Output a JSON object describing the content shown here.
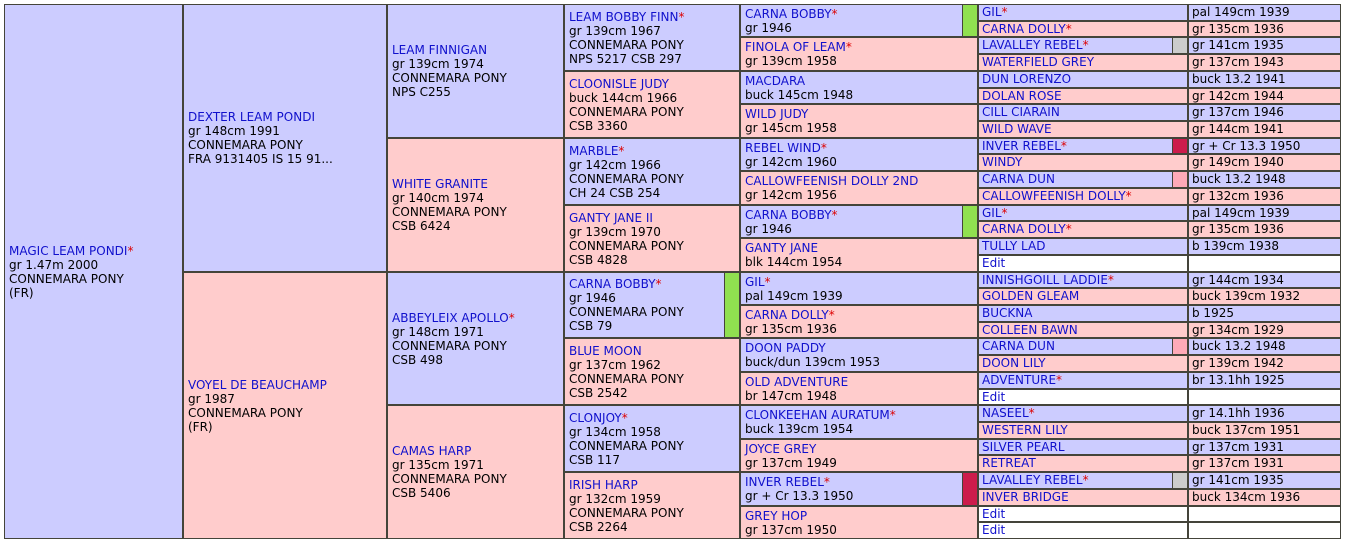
{
  "horses": {
    "g1": {
      "name": "MAGIC LEAM PONDI",
      "star": true,
      "lines": [
        "gr 1.47m 2000",
        "CONNEMARA PONY",
        "(FR)"
      ]
    },
    "g2a": {
      "name": "DEXTER LEAM PONDI",
      "star": false,
      "lines": [
        "gr 148cm 1991",
        "CONNEMARA PONY",
        "FRA 9131405 IS 15 91..."
      ]
    },
    "g2b": {
      "name": "VOYEL DE BEAUCHAMP",
      "star": false,
      "lines": [
        "gr 1987",
        "CONNEMARA PONY",
        "(FR)"
      ]
    },
    "g3a": {
      "name": "LEAM FINNIGAN",
      "star": false,
      "lines": [
        "gr 139cm 1974",
        "CONNEMARA PONY",
        "NPS C255"
      ]
    },
    "g3b": {
      "name": "WHITE GRANITE",
      "star": false,
      "lines": [
        "gr 140cm 1974",
        "CONNEMARA PONY",
        "CSB 6424"
      ]
    },
    "g3c": {
      "name": "ABBEYLEIX APOLLO",
      "star": true,
      "lines": [
        "gr 148cm 1971",
        "CONNEMARA PONY",
        "CSB 498"
      ]
    },
    "g3d": {
      "name": "CAMAS HARP",
      "star": false,
      "lines": [
        "gr 135cm 1971",
        "CONNEMARA PONY",
        "CSB 5406"
      ]
    },
    "g4a": {
      "name": "LEAM BOBBY FINN",
      "star": true,
      "lines": [
        "gr 139cm 1967",
        "CONNEMARA PONY",
        "NPS 5217 CSB 297"
      ]
    },
    "g4b": {
      "name": "CLOONISLE JUDY",
      "star": false,
      "lines": [
        "buck 144cm 1966",
        "CONNEMARA PONY",
        "CSB 3360"
      ]
    },
    "g4c": {
      "name": "MARBLE",
      "star": true,
      "lines": [
        "gr 142cm 1966",
        "CONNEMARA PONY",
        "CH 24 CSB 254"
      ]
    },
    "g4d": {
      "name": "GANTY JANE II",
      "star": false,
      "lines": [
        "gr 139cm 1970",
        "CONNEMARA PONY",
        "CSB 4828"
      ]
    },
    "g4e": {
      "name": "CARNA BOBBY",
      "star": true,
      "lines": [
        "gr 1946",
        "CONNEMARA PONY",
        "CSB 79"
      ]
    },
    "g4f": {
      "name": "BLUE MOON",
      "star": false,
      "lines": [
        "gr 137cm 1962",
        "CONNEMARA PONY",
        "CSB 2542"
      ]
    },
    "g4g": {
      "name": "CLONJOY",
      "star": true,
      "lines": [
        "gr 134cm 1958",
        "CONNEMARA PONY",
        "CSB 117"
      ]
    },
    "g4h": {
      "name": "IRISH HARP",
      "star": false,
      "lines": [
        "gr 132cm 1959",
        "CONNEMARA PONY",
        "CSB 2264"
      ]
    },
    "g5": [
      {
        "name": "CARNA BOBBY",
        "star": true,
        "info": "gr 1946"
      },
      {
        "name": "FINOLA OF LEAM",
        "star": true,
        "info": "gr 139cm 1958"
      },
      {
        "name": "MACDARA",
        "star": false,
        "info": "buck 145cm 1948"
      },
      {
        "name": "WILD JUDY",
        "star": false,
        "info": "gr 145cm 1958"
      },
      {
        "name": "REBEL WIND",
        "star": true,
        "info": "gr 142cm 1960"
      },
      {
        "name": "CALLOWFEENISH DOLLY 2ND",
        "star": false,
        "info": "gr 142cm 1956"
      },
      {
        "name": "CARNA BOBBY",
        "star": true,
        "info": "gr 1946"
      },
      {
        "name": "GANTY JANE",
        "star": false,
        "info": "blk 144cm 1954"
      },
      {
        "name": "GIL",
        "star": true,
        "info": "pal 149cm 1939"
      },
      {
        "name": "CARNA DOLLY",
        "star": true,
        "info": "gr 135cm 1936"
      },
      {
        "name": "DOON PADDY",
        "star": false,
        "info": "buck/dun 139cm 1953"
      },
      {
        "name": "OLD ADVENTURE",
        "star": false,
        "info": "br 147cm 1948"
      },
      {
        "name": "CLONKEEHAN AURATUM",
        "star": true,
        "info": "buck 139cm 1954"
      },
      {
        "name": "JOYCE GREY",
        "star": false,
        "info": "gr 137cm 1949"
      },
      {
        "name": "INVER REBEL",
        "star": true,
        "info": "gr + Cr 13.3 1950"
      },
      {
        "name": "GREY HOP",
        "star": false,
        "info": "gr 137cm 1950"
      }
    ],
    "g6": [
      {
        "name": "GIL",
        "star": true,
        "info": "pal 149cm 1939"
      },
      {
        "name": "CARNA DOLLY",
        "star": true,
        "info": "gr 135cm 1936"
      },
      {
        "name": "LAVALLEY REBEL",
        "star": true,
        "info": "gr 141cm 1935"
      },
      {
        "name": "WATERFIELD GREY",
        "star": false,
        "info": "gr 137cm 1943"
      },
      {
        "name": "DUN LORENZO",
        "star": false,
        "info": "buck 13.2 1941"
      },
      {
        "name": "DOLAN ROSE",
        "star": false,
        "info": "gr 142cm 1944"
      },
      {
        "name": "CILL CIARAIN",
        "star": false,
        "info": "gr 137cm 1946"
      },
      {
        "name": "WILD WAVE",
        "star": false,
        "info": "gr 144cm 1941"
      },
      {
        "name": "INVER REBEL",
        "star": true,
        "info": "gr + Cr 13.3 1950"
      },
      {
        "name": "WINDY",
        "star": false,
        "info": "gr 149cm 1940"
      },
      {
        "name": "CARNA DUN",
        "star": false,
        "info": "buck 13.2 1948"
      },
      {
        "name": "CALLOWFEENISH DOLLY",
        "star": true,
        "info": "gr 132cm 1936"
      },
      {
        "name": "GIL",
        "star": true,
        "info": "pal 149cm 1939"
      },
      {
        "name": "CARNA DOLLY",
        "star": true,
        "info": "gr 135cm 1936"
      },
      {
        "name": "TULLY LAD",
        "star": false,
        "info": "b 139cm 1938"
      },
      {
        "name": "Edit",
        "star": false,
        "info": ""
      },
      {
        "name": "INNISHGOILL LADDIE",
        "star": true,
        "info": "gr 144cm 1934"
      },
      {
        "name": "GOLDEN GLEAM",
        "star": false,
        "info": "buck 139cm 1932"
      },
      {
        "name": "BUCKNA",
        "star": false,
        "info": "b 1925"
      },
      {
        "name": "COLLEEN BAWN",
        "star": false,
        "info": "gr 134cm 1929"
      },
      {
        "name": "CARNA DUN",
        "star": false,
        "info": "buck 13.2 1948"
      },
      {
        "name": "DOON LILY",
        "star": false,
        "info": "gr 139cm 1942"
      },
      {
        "name": "ADVENTURE",
        "star": true,
        "info": "br 13.1hh 1925"
      },
      {
        "name": "Edit",
        "star": false,
        "info": ""
      },
      {
        "name": "NASEEL",
        "star": true,
        "info": "gr 14.1hh 1936"
      },
      {
        "name": "WESTERN LILY",
        "star": false,
        "info": "buck 137cm 1951"
      },
      {
        "name": "SILVER PEARL",
        "star": false,
        "info": "gr 137cm 1931"
      },
      {
        "name": "RETREAT",
        "star": false,
        "info": "gr 137cm 1931"
      },
      {
        "name": "LAVALLEY REBEL",
        "star": true,
        "info": "gr 141cm 1935"
      },
      {
        "name": "INVER BRIDGE",
        "star": false,
        "info": "buck 134cm 1936"
      },
      {
        "name": "Edit",
        "star": false,
        "info": ""
      },
      {
        "name": "Edit",
        "star": false,
        "info": ""
      }
    ]
  },
  "colors": {
    "male_bg": "#ccccff",
    "female_bg": "#ffcccc",
    "name_link": "#1010cc",
    "star": "#dd0000",
    "marker_green": "#90e050",
    "marker_red": "#cc1c4c",
    "marker_grey": "#cccccc",
    "marker_pink": "#ffaab8"
  },
  "star_symbol": "*"
}
